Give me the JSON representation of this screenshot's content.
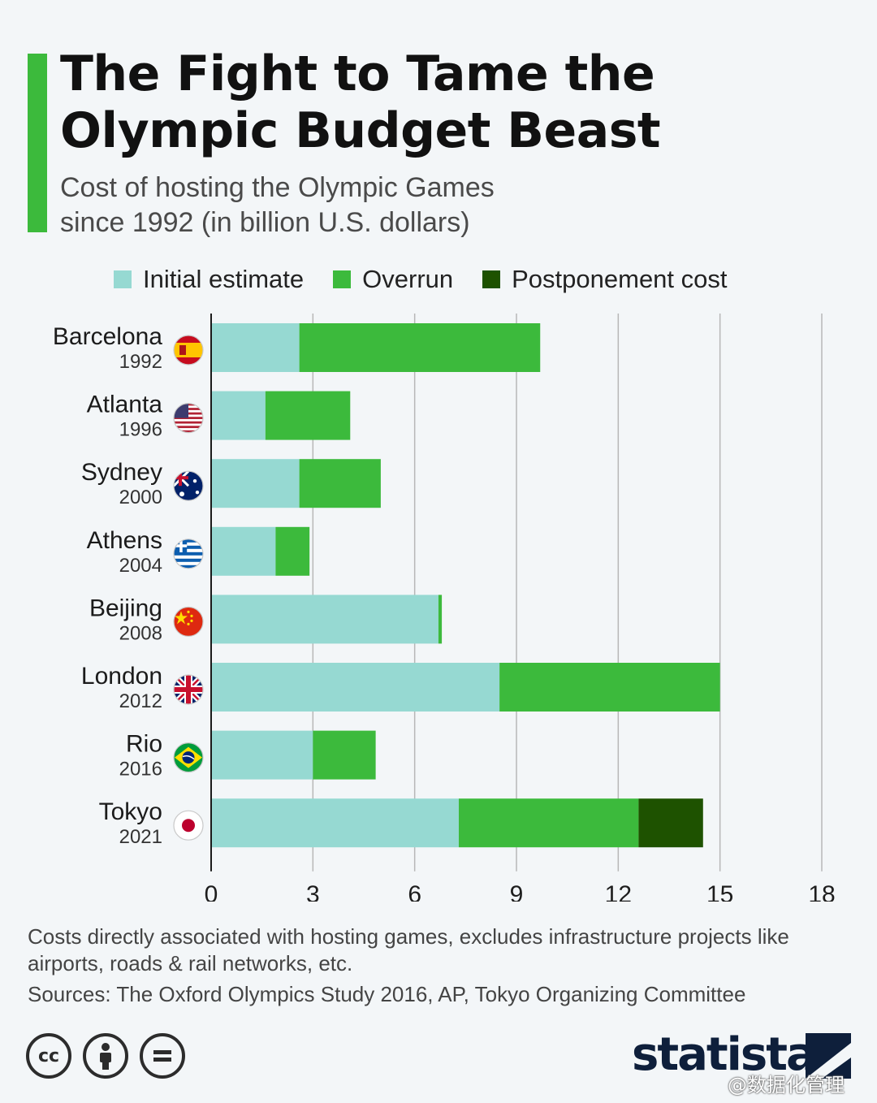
{
  "header": {
    "title_line1": "The Fight to Tame the",
    "title_line2": "Olympic Budget Beast",
    "subtitle_line1": "Cost of hosting the Olympic Games",
    "subtitle_line2": "since 1992 (in billion U.S. dollars)",
    "accent_color": "#3cba3c"
  },
  "legend": [
    {
      "label": "Initial estimate",
      "color": "#96d9d2"
    },
    {
      "label": "Overrun",
      "color": "#3cba3c"
    },
    {
      "label": "Postponement cost",
      "color": "#1e5200"
    }
  ],
  "chart_data": {
    "type": "bar",
    "orientation": "horizontal",
    "stacked": true,
    "title": "The Fight to Tame the Olympic Budget Beast",
    "subtitle": "Cost of hosting the Olympic Games since 1992 (in billion U.S. dollars)",
    "categories": [
      {
        "city": "Barcelona",
        "year": "1992",
        "flag": "spain-flag-icon"
      },
      {
        "city": "Atlanta",
        "year": "1996",
        "flag": "usa-flag-icon"
      },
      {
        "city": "Sydney",
        "year": "2000",
        "flag": "australia-flag-icon"
      },
      {
        "city": "Athens",
        "year": "2004",
        "flag": "greece-flag-icon"
      },
      {
        "city": "Beijing",
        "year": "2008",
        "flag": "china-flag-icon"
      },
      {
        "city": "London",
        "year": "2012",
        "flag": "uk-flag-icon"
      },
      {
        "city": "Rio",
        "year": "2016",
        "flag": "brazil-flag-icon"
      },
      {
        "city": "Tokyo",
        "year": "2021",
        "flag": "japan-flag-icon"
      }
    ],
    "series": [
      {
        "name": "Initial estimate",
        "color": "#96d9d2",
        "values": [
          2.6,
          1.6,
          2.6,
          1.9,
          6.7,
          8.5,
          3.0,
          7.3
        ]
      },
      {
        "name": "Overrun",
        "color": "#3cba3c",
        "values": [
          7.1,
          2.5,
          2.4,
          1.0,
          0.1,
          6.5,
          1.85,
          5.3
        ]
      },
      {
        "name": "Postponement cost",
        "color": "#1e5200",
        "values": [
          0,
          0,
          0,
          0,
          0,
          0,
          0,
          1.9
        ]
      }
    ],
    "xlim": [
      0,
      18
    ],
    "xticks": [
      "0",
      "3",
      "6",
      "9",
      "12",
      "15",
      "18"
    ],
    "grid": true,
    "legend_position": "top"
  },
  "footer": {
    "note": "Costs directly associated with hosting games, excludes infrastructure projects like airports, roads & rail networks, etc.",
    "sources": "Sources: The Oxford Olympics Study 2016, AP, Tokyo Organizing Committee",
    "cc_icons": [
      "creative-commons-icon",
      "attribution-icon",
      "no-derivatives-icon"
    ],
    "cc_text": "cc",
    "logo_text": "statista",
    "watermark": "@数据化管理"
  }
}
